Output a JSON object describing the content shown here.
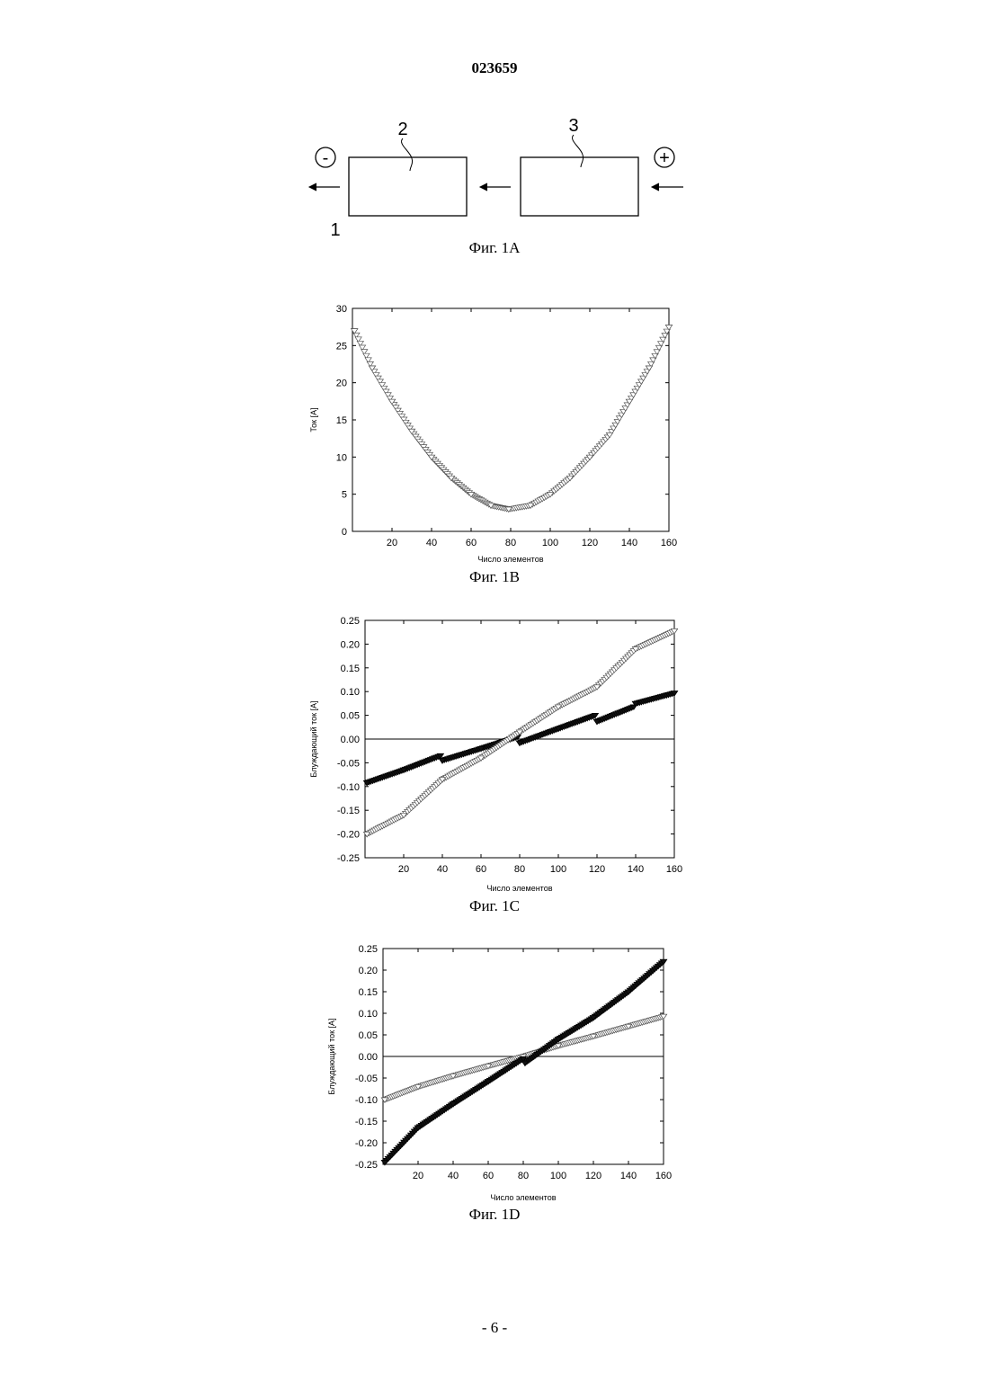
{
  "header": {
    "doc_number": "023659"
  },
  "footer": {
    "page_label": "- 6 -"
  },
  "figures": {
    "fig_1a": {
      "caption": "Фиг. 1А",
      "minus_sign": "-",
      "plus_sign": "+",
      "label_1": "1",
      "label_2": "2",
      "label_3": "3"
    },
    "fig_1b": {
      "caption": "Фиг. 1В"
    },
    "fig_1c": {
      "caption": "Фиг. 1С"
    },
    "fig_1d": {
      "caption": "Фиг. 1D"
    }
  },
  "chart_data": [
    {
      "id": "fig_1b",
      "type": "scatter",
      "xlabel": "Число элементов",
      "ylabel": "Ток [А]",
      "xlim": [
        0,
        160
      ],
      "ylim": [
        0,
        30
      ],
      "xticks": [
        "20",
        "40",
        "60",
        "80",
        "100",
        "120",
        "140",
        "160"
      ],
      "yticks": [
        "0",
        "5",
        "10",
        "15",
        "20",
        "25",
        "30"
      ],
      "grid": false,
      "zero_line": false,
      "series": [
        {
          "marker": "hollow-triangle",
          "x": [
            1,
            10,
            20,
            30,
            40,
            50,
            60,
            70,
            79,
            90,
            100,
            110,
            120,
            130,
            140,
            150,
            160
          ],
          "y": [
            27,
            22,
            17.5,
            13.5,
            10,
            7.2,
            5,
            3.5,
            3,
            3.5,
            5,
            7.2,
            10,
            13,
            17.5,
            22,
            27.5
          ]
        }
      ]
    },
    {
      "id": "fig_1c",
      "type": "scatter",
      "xlabel": "Число элементов",
      "ylabel": "Блуждающий ток [А]",
      "xlim": [
        0,
        160
      ],
      "ylim": [
        -0.25,
        0.25
      ],
      "xticks": [
        "20",
        "40",
        "60",
        "80",
        "100",
        "120",
        "140",
        "160"
      ],
      "yticks": [
        "-0.25",
        "-0.20",
        "-0.15",
        "-0.10",
        "-0.05",
        "0.00",
        "0.05",
        "0.10",
        "0.15",
        "0.20",
        "0.25"
      ],
      "grid": false,
      "zero_line": true,
      "series": [
        {
          "marker": "filled",
          "x": [
            1,
            20,
            39,
            40,
            60,
            79,
            80,
            100,
            119,
            120,
            139,
            140,
            160
          ],
          "y": [
            -0.092,
            -0.065,
            -0.035,
            -0.045,
            -0.02,
            0.005,
            -0.008,
            0.022,
            0.05,
            0.037,
            0.068,
            0.075,
            0.097
          ]
        },
        {
          "marker": "hollow-triangle",
          "x": [
            1,
            20,
            40,
            60,
            80,
            100,
            120,
            140,
            160
          ],
          "y": [
            -0.2,
            -0.16,
            -0.085,
            -0.04,
            0.015,
            0.068,
            0.11,
            0.19,
            0.228
          ]
        }
      ]
    },
    {
      "id": "fig_1d",
      "type": "scatter",
      "xlabel": "Число элементов",
      "ylabel": "Блуждающий ток [А]",
      "xlim": [
        0,
        160
      ],
      "ylim": [
        -0.25,
        0.25
      ],
      "xticks": [
        "20",
        "40",
        "60",
        "80",
        "100",
        "120",
        "140",
        "160"
      ],
      "yticks": [
        "-0.25",
        "-0.20",
        "-0.15",
        "-0.10",
        "-0.05",
        "0.00",
        "0.05",
        "0.10",
        "0.15",
        "0.20",
        "0.25"
      ],
      "grid": false,
      "zero_line": true,
      "series": [
        {
          "marker": "hollow-triangle",
          "x": [
            1,
            20,
            40,
            60,
            80,
            100,
            120,
            140,
            160
          ],
          "y": [
            -0.1,
            -0.07,
            -0.045,
            -0.022,
            0,
            0.025,
            0.047,
            0.07,
            0.093
          ]
        },
        {
          "marker": "filled",
          "x": [
            1,
            20,
            40,
            60,
            80,
            81,
            100,
            120,
            140,
            160
          ],
          "y": [
            -0.245,
            -0.165,
            -0.11,
            -0.058,
            -0.005,
            -0.015,
            0.04,
            0.09,
            0.15,
            0.22
          ]
        }
      ]
    }
  ]
}
